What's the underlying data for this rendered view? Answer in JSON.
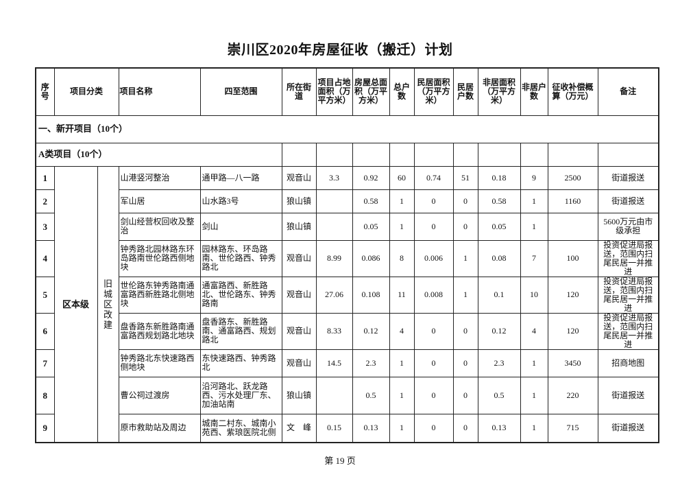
{
  "title": "崇川区2020年房屋征收（搬迁）计划",
  "columns": [
    "序号",
    "项目分类",
    "项目名称",
    "四至范围",
    "所在街道",
    "项目占地面积（万平方米）",
    "房屋总面积（万平方米）",
    "总户数",
    "民居面积（万平方米）",
    "民居户数",
    "非居面积（万平方米）",
    "非居户数",
    "征收补偿概算（万元）",
    "备注"
  ],
  "section": "一、新开项目（10个）",
  "subsection": "A类项目（10个）",
  "category_level": "区本级",
  "category_type": "旧城区改建",
  "rows": [
    {
      "no": "1",
      "name": "山港竖河整治",
      "range": "通甲路—八一路",
      "street": "观音山",
      "land": "3.3",
      "area": "0.92",
      "households": "60",
      "res_area": "0.74",
      "res_hh": "51",
      "nonres_area": "0.18",
      "nonres_hh": "9",
      "budget": "2500",
      "note": "街道报送"
    },
    {
      "no": "2",
      "name": "军山居",
      "range": "山水路3号",
      "street": "狼山镇",
      "land": "",
      "area": "0.58",
      "households": "1",
      "res_area": "0",
      "res_hh": "0",
      "nonres_area": "0.58",
      "nonres_hh": "1",
      "budget": "1160",
      "note": "街道报送"
    },
    {
      "no": "3",
      "name": "剑山经营权回收及整治",
      "range": "剑山",
      "street": "狼山镇",
      "land": "",
      "area": "0.05",
      "households": "1",
      "res_area": "0",
      "res_hh": "0",
      "nonres_area": "0.05",
      "nonres_hh": "1",
      "budget": "",
      "note": "5600万元由市级承担"
    },
    {
      "no": "4",
      "name": "钟秀路北园林路东环岛路南世伦路西侧地块",
      "range": "园林路东、环岛路南、世伦路西、钟秀路北",
      "street": "观音山",
      "land": "8.99",
      "area": "0.086",
      "households": "8",
      "res_area": "0.006",
      "res_hh": "1",
      "nonres_area": "0.08",
      "nonres_hh": "7",
      "budget": "100",
      "note": "投资促进局报送，范围内扫尾民居一并推进"
    },
    {
      "no": "5",
      "name": "世伦路东钟秀路南通富路西新胜路北侧地块",
      "range": "通富路西、新胜路北、世伦路东、钟秀路南",
      "street": "观音山",
      "land": "27.06",
      "area": "0.108",
      "households": "11",
      "res_area": "0.008",
      "res_hh": "1",
      "nonres_area": "0.1",
      "nonres_hh": "10",
      "budget": "120",
      "note": "投资促进局报送，范围内扫尾民居一并推进"
    },
    {
      "no": "6",
      "name": "盘香路东新胜路南通富路西规划路北地块",
      "range": "盘香路东、新胜路南、通富路西、规划路北",
      "street": "观音山",
      "land": "8.33",
      "area": "0.12",
      "households": "4",
      "res_area": "0",
      "res_hh": "0",
      "nonres_area": "0.12",
      "nonres_hh": "4",
      "budget": "120",
      "note": "投资促进局报送，范围内扫尾民居一并推进"
    },
    {
      "no": "7",
      "name": "钟秀路北东快速路西侧地块",
      "range": "东快速路西、钟秀路北",
      "street": "观音山",
      "land": "14.5",
      "area": "2.3",
      "households": "1",
      "res_area": "0",
      "res_hh": "0",
      "nonres_area": "2.3",
      "nonres_hh": "1",
      "budget": "3450",
      "note": "招商地图"
    },
    {
      "no": "8",
      "name": "曹公祠过渡房",
      "range": "沿河路北、跃龙路西、污水处理厂东、加油站南",
      "street": "狼山镇",
      "land": "",
      "area": "0.5",
      "households": "1",
      "res_area": "0",
      "res_hh": "0",
      "nonres_area": "0.5",
      "nonres_hh": "1",
      "budget": "220",
      "note": "街道报送"
    },
    {
      "no": "9",
      "name": "原市救助站及周边",
      "range": "城南二村东、城南小苑西、紫琅医院北侧",
      "street": "文　峰",
      "land": "0.15",
      "area": "0.13",
      "households": "1",
      "res_area": "0",
      "res_hh": "0",
      "nonres_area": "0.13",
      "nonres_hh": "1",
      "budget": "715",
      "note": "街道报送"
    }
  ],
  "footer": "第 19 页"
}
